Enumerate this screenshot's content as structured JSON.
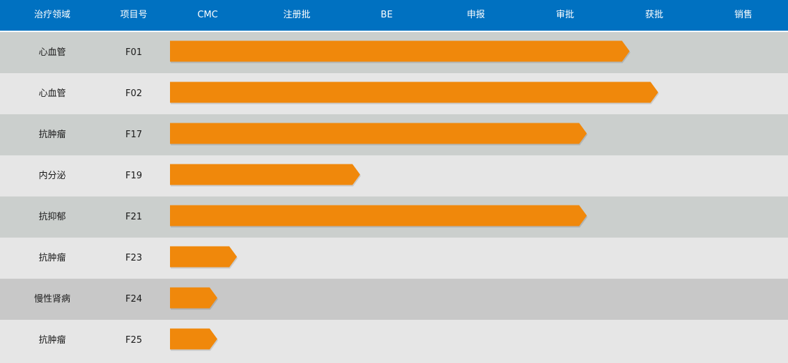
{
  "header": {
    "columns": [
      "治疗领域",
      "项目号",
      "CMC",
      "注册批",
      "BE",
      "申报",
      "审批",
      "获批",
      "销售"
    ]
  },
  "colors": {
    "header_bg": "#0071c1",
    "bar": "#f0880b",
    "row_dark": "#cbcfcd",
    "row_light": "#e6e6e6",
    "row_gray": "#c8c8c8"
  },
  "chart_data": {
    "type": "bar",
    "orientation": "horizontal",
    "stages": [
      "CMC",
      "注册批",
      "BE",
      "申报",
      "审批",
      "获批",
      "销售"
    ],
    "rows": [
      {
        "area": "心血管",
        "code": "F01",
        "progress": 5.15,
        "shade": "dark"
      },
      {
        "area": "心血管",
        "code": "F02",
        "progress": 5.47,
        "shade": "light"
      },
      {
        "area": "抗肿瘤",
        "code": "F17",
        "progress": 4.67,
        "shade": "dark"
      },
      {
        "area": "内分泌",
        "code": "F19",
        "progress": 2.13,
        "shade": "light"
      },
      {
        "area": "抗抑郁",
        "code": "F21",
        "progress": 4.67,
        "shade": "dark"
      },
      {
        "area": "抗肿瘤",
        "code": "F23",
        "progress": 0.75,
        "shade": "light"
      },
      {
        "area": "慢性肾病",
        "code": "F24",
        "progress": 0.53,
        "shade": "gray"
      },
      {
        "area": "抗肿瘤",
        "code": "F25",
        "progress": 0.53,
        "shade": "light"
      }
    ]
  }
}
